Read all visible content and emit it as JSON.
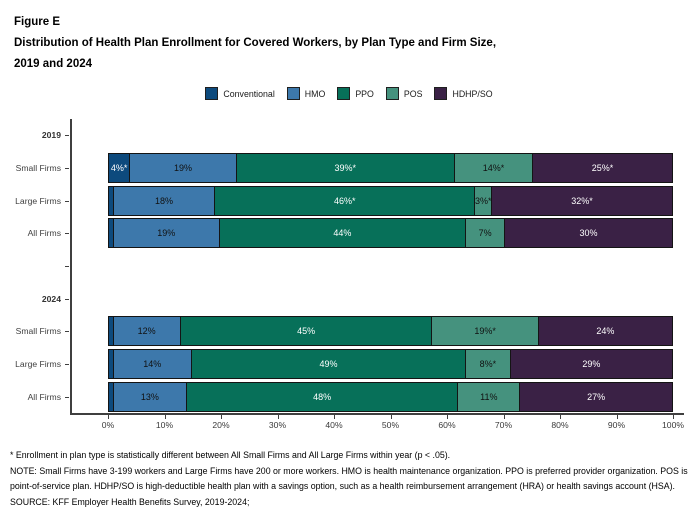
{
  "title": {
    "figure_label": "Figure E",
    "line1": "Distribution of Health Plan Enrollment for Covered Workers, by Plan Type and Firm Size,",
    "line2": "2019 and 2024"
  },
  "legend": [
    {
      "label": "Conventional",
      "color": "#0d4a7d",
      "text_color": "#ffffff"
    },
    {
      "label": "HMO",
      "color": "#3d78ab",
      "text_color": "#111111"
    },
    {
      "label": "PPO",
      "color": "#077059",
      "text_color": "#ffffff"
    },
    {
      "label": "POS",
      "color": "#45927e",
      "text_color": "#111111"
    },
    {
      "label": "HDHP/SO",
      "color": "#3a2145",
      "text_color": "#ffffff"
    }
  ],
  "chart_data": {
    "type": "bar",
    "stacked": true,
    "orientation": "horizontal",
    "title": "Distribution of Health Plan Enrollment for Covered Workers, by Plan Type and Firm Size, 2019 and 2024",
    "xlabel": "",
    "ylabel": "",
    "xlim": [
      0,
      100
    ],
    "x_tick_labels": [
      "0%",
      "10%",
      "20%",
      "30%",
      "40%",
      "50%",
      "60%",
      "70%",
      "80%",
      "90%",
      "100%"
    ],
    "grid": false,
    "legend_position": "top-center",
    "series_names": [
      "Conventional",
      "HMO",
      "PPO",
      "POS",
      "HDHP/SO"
    ],
    "groups": [
      {
        "group_label": "2019",
        "rows": [
          {
            "label": "Small Firms",
            "values": [
              4,
              19,
              39,
              14,
              25
            ],
            "value_labels": [
              "4%*",
              "19%",
              "39%*",
              "14%*",
              "25%*"
            ]
          },
          {
            "label": "Large Firms",
            "values": [
              1,
              18,
              46,
              3,
              32
            ],
            "value_labels": [
              "",
              "18%",
              "46%*",
              "3%*",
              "32%*"
            ]
          },
          {
            "label": "All Firms",
            "values": [
              1,
              19,
              44,
              7,
              30
            ],
            "value_labels": [
              "",
              "19%",
              "44%",
              "7%",
              "30%"
            ]
          }
        ]
      },
      {
        "group_label": "2024",
        "rows": [
          {
            "label": "Small Firms",
            "values": [
              1,
              12,
              45,
              19,
              24
            ],
            "value_labels": [
              "",
              "12%",
              "45%",
              "19%*",
              "24%"
            ]
          },
          {
            "label": "Large Firms",
            "values": [
              1,
              14,
              49,
              8,
              29
            ],
            "value_labels": [
              "",
              "14%",
              "49%",
              "8%*",
              "29%"
            ]
          },
          {
            "label": "All Firms",
            "values": [
              1,
              13,
              48,
              11,
              27
            ],
            "value_labels": [
              "",
              "13%",
              "48%",
              "11%",
              "27%"
            ]
          }
        ]
      }
    ]
  },
  "footnotes": {
    "star_note": "* Enrollment in plan type is statistically different between All Small Firms and All Large Firms within year (p < .05).",
    "note": "NOTE: Small Firms have 3-199 workers and Large Firms have 200 or more workers. HMO is health maintenance organization. PPO is preferred provider organization. POS is point-of-service plan. HDHP/SO is high-deductible health plan with a savings option, such as a health reimbursement arrangement (HRA) or health savings account (HSA).",
    "source": "SOURCE: KFF Employer Health Benefits Survey, 2019-2024;"
  },
  "colors": {
    "axis": "#3f3f3f",
    "segment_border": "#141414",
    "category_label": "#3f3f3f",
    "background": "#ffffff"
  }
}
